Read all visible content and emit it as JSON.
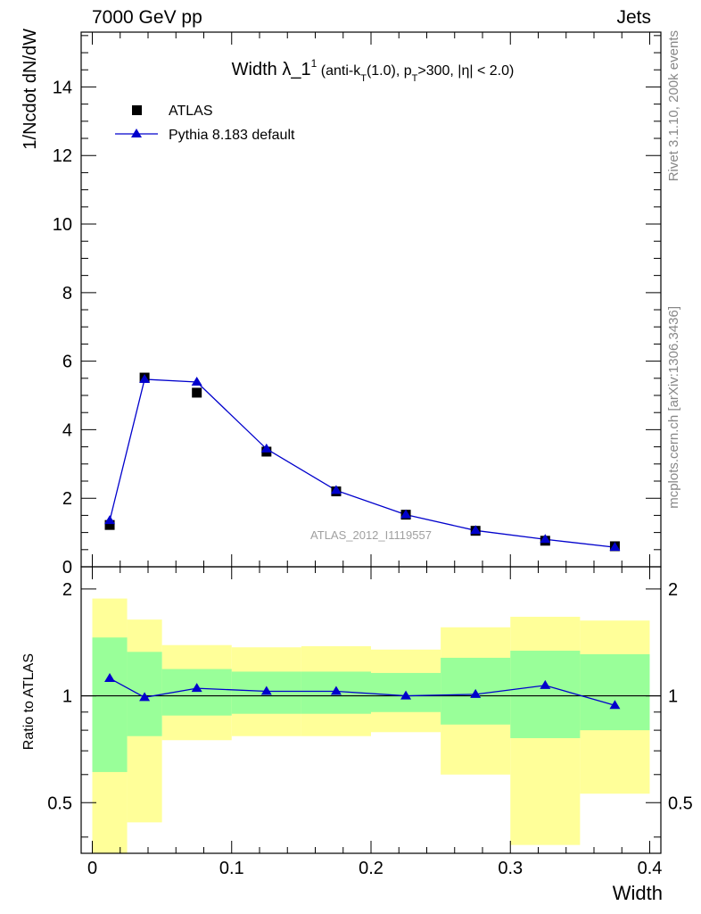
{
  "header": {
    "left": "7000 GeV pp",
    "right": "Jets"
  },
  "side_labels": {
    "rivet": "Rivet 3.1.10,  200k events",
    "mcplots": "mcplots.cern.ch [arXiv:1306.3436]"
  },
  "chart_data": [
    {
      "type": "scatter",
      "panel": "main",
      "title": {
        "main": "Width λ_1",
        "sup": "1",
        "detail_1": " (anti-k",
        "sub_1": "T",
        "detail_2": "(1.0), p",
        "sub_2": "T",
        "detail_3": ">300, |η| < 2.0)"
      },
      "ylabel": "1/Ncdot dN/dW",
      "ylim": [
        0,
        15.6
      ],
      "yticks": [
        0,
        2,
        4,
        6,
        8,
        10,
        12,
        14
      ],
      "ytick_labels": [
        "0",
        "2",
        "4",
        "6",
        "8",
        "10",
        "12",
        "14"
      ],
      "xlim": [
        -0.008,
        0.408
      ],
      "watermark": "ATLAS_2012_I1119557",
      "legend_position": "top-left",
      "series": [
        {
          "name": "ATLAS",
          "marker": "square",
          "color": "#000000",
          "x": [
            0.0125,
            0.0375,
            0.075,
            0.125,
            0.175,
            0.225,
            0.275,
            0.325,
            0.375
          ],
          "values": [
            1.22,
            5.52,
            5.08,
            3.36,
            2.2,
            1.52,
            1.05,
            0.76,
            0.6
          ]
        },
        {
          "name": "Pythia 8.183 default",
          "marker": "triangle",
          "color": "#0000cc",
          "x": [
            0.0125,
            0.0375,
            0.075,
            0.125,
            0.175,
            0.225,
            0.275,
            0.325,
            0.375
          ],
          "values": [
            1.35,
            5.47,
            5.39,
            3.44,
            2.23,
            1.52,
            1.06,
            0.8,
            0.57
          ]
        }
      ]
    },
    {
      "type": "area",
      "panel": "ratio",
      "ylabel": "Ratio to ATLAS",
      "xlabel": "Width",
      "ylim": [
        0.36,
        2.31
      ],
      "yscale": "log",
      "yticks": [
        0.5,
        1,
        2
      ],
      "ytick_labels": [
        "0.5",
        "1",
        "2"
      ],
      "xlim": [
        -0.008,
        0.408
      ],
      "xticks": [
        0,
        0.1,
        0.2,
        0.3,
        0.4
      ],
      "xtick_labels": [
        "0",
        "0.1",
        "0.2",
        "0.3",
        "0.4"
      ],
      "bins": [
        0,
        0.025,
        0.05,
        0.1,
        0.15,
        0.2,
        0.25,
        0.3,
        0.35,
        0.4
      ],
      "band_yellow_low": [
        0.36,
        0.44,
        0.75,
        0.77,
        0.77,
        0.79,
        0.6,
        0.38,
        0.53
      ],
      "band_yellow_high": [
        1.88,
        1.64,
        1.39,
        1.37,
        1.38,
        1.35,
        1.56,
        1.67,
        1.63
      ],
      "band_green_low": [
        0.61,
        0.77,
        0.88,
        0.89,
        0.89,
        0.9,
        0.83,
        0.76,
        0.8
      ],
      "band_green_high": [
        1.46,
        1.33,
        1.19,
        1.17,
        1.17,
        1.16,
        1.28,
        1.34,
        1.31
      ],
      "series": [
        {
          "name": "Pythia 8.183 default",
          "color": "#0000cc",
          "x": [
            0.0125,
            0.0375,
            0.075,
            0.125,
            0.175,
            0.225,
            0.275,
            0.325,
            0.375
          ],
          "values": [
            1.12,
            0.99,
            1.05,
            1.03,
            1.03,
            1.0,
            1.01,
            1.07,
            0.94
          ]
        }
      ]
    }
  ]
}
